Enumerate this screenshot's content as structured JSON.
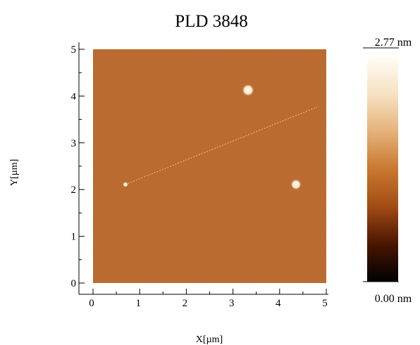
{
  "chart_data": {
    "type": "image",
    "title": "PLD 3848",
    "x_label": "X[µm]",
    "y_label": "Y[µm]",
    "xlim": [
      0,
      5
    ],
    "ylim": [
      0,
      5
    ],
    "xticks": [
      0,
      1,
      2,
      3,
      4,
      5
    ],
    "yticks": [
      0,
      1,
      2,
      3,
      4,
      5
    ],
    "minor_xticks": [
      0.5,
      1.5,
      2.5,
      3.5,
      4.5
    ],
    "minor_yticks": [
      0.5,
      1.5,
      2.5,
      3.5,
      4.5
    ],
    "color": "#c0692e",
    "colorbar": {
      "range": [
        0,
        2.77
      ],
      "ticks": [
        {
          "value": 2.77,
          "label": "2.77 nm"
        },
        {
          "value": 0,
          "label": "0.00 nm"
        }
      ],
      "colormap": [
        "#000000",
        "#4a1600",
        "#a24c14",
        "#c9782f",
        "#e6b27a",
        "#f6e2c2",
        "#fffdf7"
      ]
    }
  }
}
